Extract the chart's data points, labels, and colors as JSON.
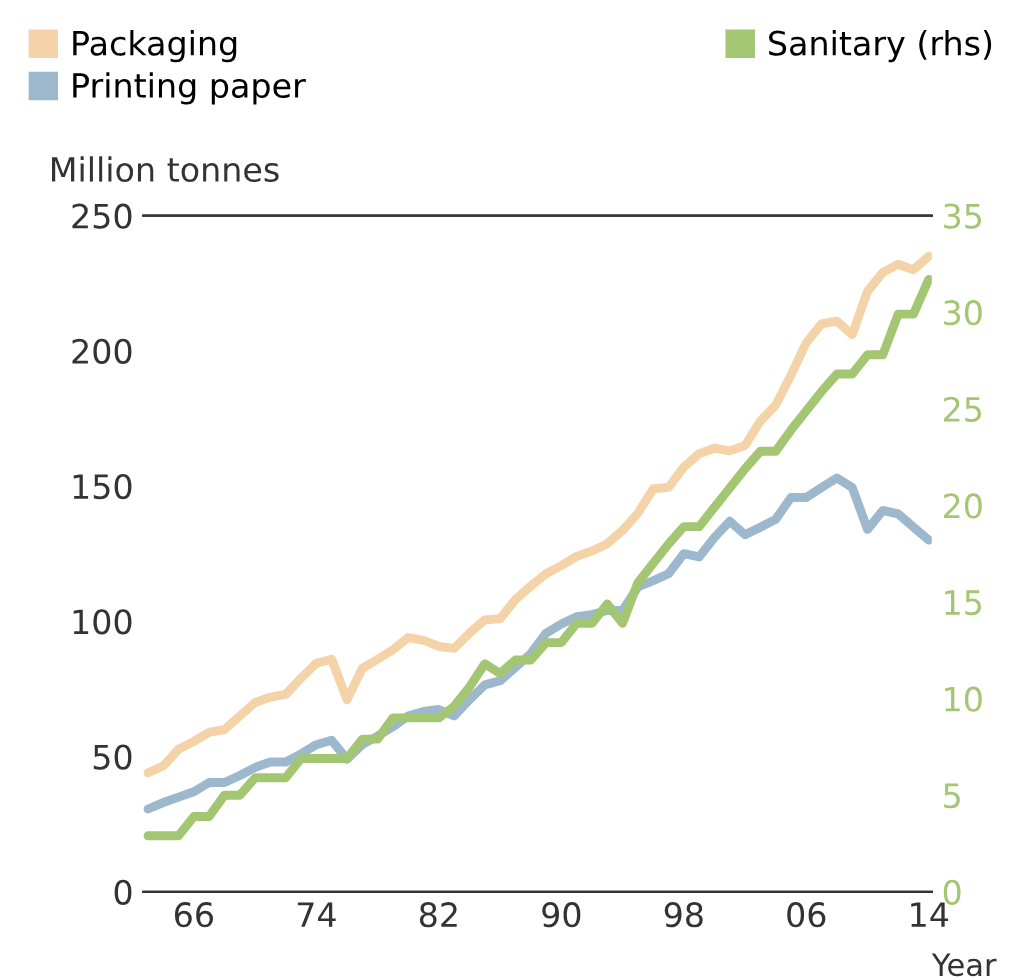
{
  "chart_data": {
    "type": "line",
    "ylabel": "Million tonnes",
    "xlabel": "Year",
    "x": [
      1963,
      1964,
      1965,
      1966,
      1967,
      1968,
      1969,
      1970,
      1971,
      1972,
      1973,
      1974,
      1975,
      1976,
      1977,
      1978,
      1979,
      1980,
      1981,
      1982,
      1983,
      1984,
      1985,
      1986,
      1987,
      1988,
      1989,
      1990,
      1991,
      1992,
      1993,
      1994,
      1995,
      1996,
      1997,
      1998,
      1999,
      2000,
      2001,
      2002,
      2003,
      2004,
      2005,
      2006,
      2007,
      2008,
      2009,
      2010,
      2011,
      2012,
      2013,
      2014
    ],
    "series": [
      {
        "name": "Packaging",
        "color": "#f5d3a8",
        "values": [
          44,
          46.5,
          52.7,
          55.6,
          59,
          60,
          65,
          70,
          72,
          73,
          79,
          84.5,
          86,
          71,
          82.6,
          86,
          89.5,
          94,
          93,
          90.7,
          90,
          95.6,
          100.5,
          101,
          108,
          113,
          117.6,
          120.6,
          124,
          126,
          128.7,
          133.6,
          140,
          149,
          149.5,
          157,
          162,
          164,
          163,
          165,
          174,
          180,
          191,
          203,
          210,
          211,
          206,
          222,
          229,
          232,
          230,
          235
        ]
      },
      {
        "name": "Printing paper",
        "color": "#9db8cc",
        "values": [
          30.6,
          33,
          35,
          37,
          40.4,
          40.4,
          43,
          46,
          48,
          48,
          51,
          54.4,
          56,
          49,
          54.4,
          57.6,
          61,
          65,
          66.7,
          67.4,
          65,
          71,
          76.5,
          78,
          83,
          88,
          95.6,
          99,
          101.7,
          102.5,
          104,
          104,
          112.7,
          115,
          117.6,
          125,
          123.8,
          131,
          137,
          132,
          134.8,
          137.7,
          145.8,
          145.8,
          149.5,
          153,
          149.5,
          134,
          141,
          139.7,
          134.8,
          130
        ]
      },
      {
        "name": "Sanitary (rhs)",
        "color": "#a3c672",
        "axis": "y2",
        "values": [
          2.9,
          2.9,
          2.9,
          3.9,
          3.9,
          5.0,
          5.0,
          5.9,
          5.9,
          5.9,
          6.9,
          6.9,
          6.9,
          6.9,
          7.9,
          7.9,
          9.0,
          9.0,
          9.0,
          9.0,
          9.6,
          10.6,
          11.8,
          11.3,
          12.0,
          12.0,
          12.9,
          12.9,
          13.9,
          13.9,
          14.9,
          13.9,
          16.0,
          17.0,
          18.0,
          18.9,
          18.9,
          19.9,
          20.9,
          21.9,
          22.8,
          22.8,
          23.9,
          24.9,
          25.9,
          26.8,
          26.8,
          27.8,
          27.8,
          29.9,
          29.9,
          31.7
        ]
      }
    ],
    "xlim": [
      1962.7,
      2014.2
    ],
    "xticks": [
      {
        "value": 1966,
        "label": "66"
      },
      {
        "value": 1974,
        "label": "74"
      },
      {
        "value": 1982,
        "label": "82"
      },
      {
        "value": 1990,
        "label": "90"
      },
      {
        "value": 1998,
        "label": "98"
      },
      {
        "value": 2006,
        "label": "06"
      },
      {
        "value": 2014,
        "label": "14"
      }
    ],
    "ylim": [
      0,
      250
    ],
    "yticks": [
      0,
      50,
      100,
      150,
      200,
      250
    ],
    "y2lim": [
      0,
      35
    ],
    "y2ticks": [
      0,
      5,
      10,
      15,
      20,
      25,
      30,
      35
    ],
    "legend": "top",
    "grid": false,
    "marker": "none",
    "line_style": "solid"
  }
}
